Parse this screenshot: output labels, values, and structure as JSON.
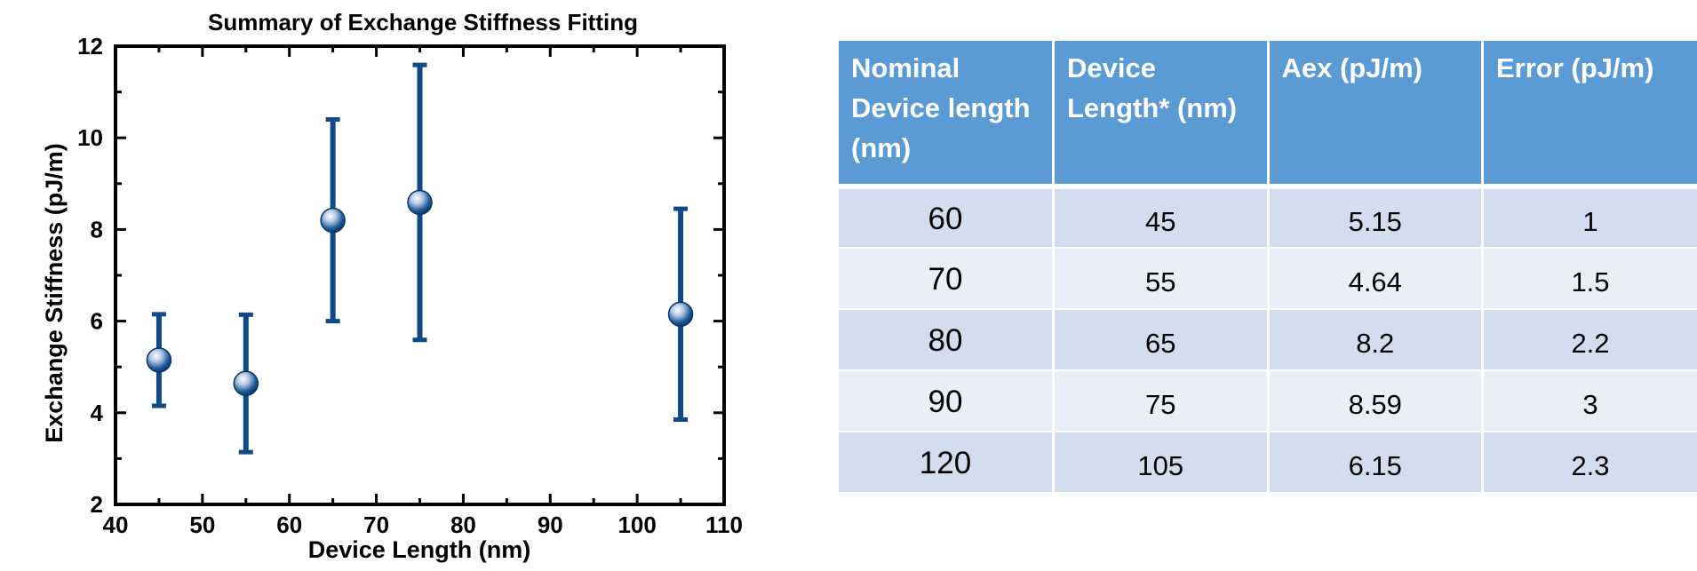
{
  "chart_data": {
    "type": "scatter",
    "title": "Summary of Exchange Stiffness Fitting",
    "xlabel": "Device Length (nm)",
    "ylabel": "Exchange Stiffness (pJ/m)",
    "xlim": [
      40,
      110
    ],
    "ylim": [
      2,
      12
    ],
    "xticks": [
      40,
      50,
      60,
      70,
      80,
      90,
      100,
      110
    ],
    "yticks": [
      2,
      4,
      6,
      8,
      10,
      12
    ],
    "grid": false,
    "legend": "none",
    "color": "#0d4a86",
    "points": [
      {
        "x": 45,
        "y": 5.15,
        "error": 1
      },
      {
        "x": 55,
        "y": 4.64,
        "error": 1.5
      },
      {
        "x": 65,
        "y": 8.2,
        "error": 2.2
      },
      {
        "x": 75,
        "y": 8.59,
        "error": 3
      },
      {
        "x": 105,
        "y": 6.15,
        "error": 2.3
      }
    ]
  },
  "table": {
    "headers": [
      "Nominal Device length (nm)",
      "Device Length* (nm)",
      "Aex (pJ/m)",
      "Error (pJ/m)"
    ],
    "rows": [
      [
        "60",
        "45",
        "5.15",
        "1"
      ],
      [
        "70",
        "55",
        "4.64",
        "1.5"
      ],
      [
        "80",
        "65",
        "8.2",
        "2.2"
      ],
      [
        "90",
        "75",
        "8.59",
        "3"
      ],
      [
        "120",
        "105",
        "6.15",
        "2.3"
      ]
    ],
    "header_color": "#5b9bd5",
    "row_colors": [
      "#d2deef",
      "#eaeff7"
    ]
  }
}
